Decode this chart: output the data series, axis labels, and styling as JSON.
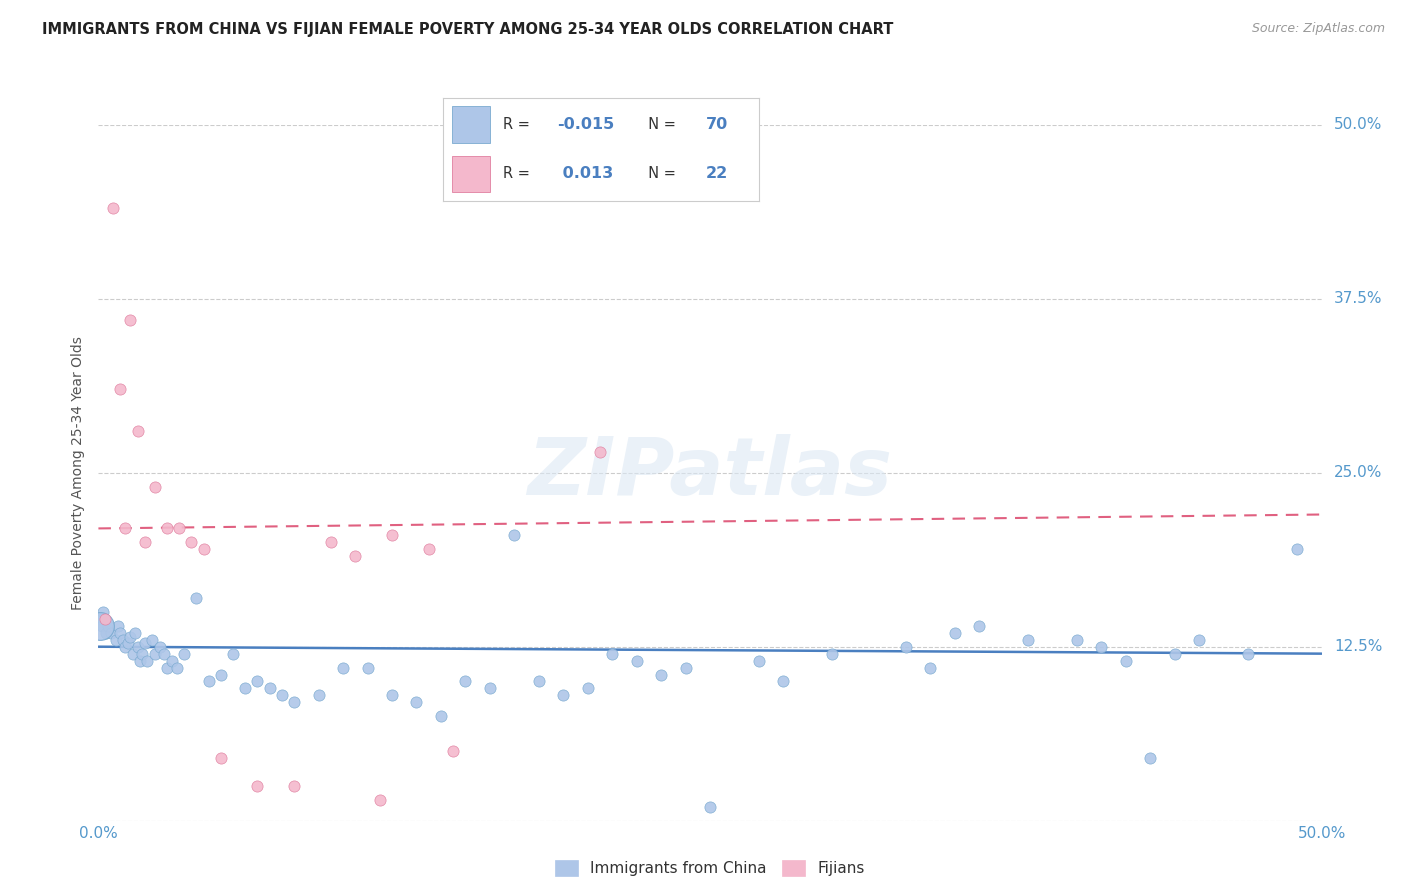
{
  "title": "IMMIGRANTS FROM CHINA VS FIJIAN FEMALE POVERTY AMONG 25-34 YEAR OLDS CORRELATION CHART",
  "source": "Source: ZipAtlas.com",
  "ylabel": "Female Poverty Among 25-34 Year Olds",
  "ytick_values": [
    0,
    12.5,
    25.0,
    37.5,
    50.0
  ],
  "xlim": [
    0,
    50
  ],
  "ylim": [
    0,
    50
  ],
  "blue_color": "#aec6e8",
  "pink_color": "#f4b8cc",
  "blue_edge_color": "#7aaad0",
  "pink_edge_color": "#e080a0",
  "blue_line_color": "#4a7fc0",
  "pink_line_color": "#e06080",
  "grid_color": "#cccccc",
  "title_color": "#222222",
  "source_color": "#999999",
  "tick_color": "#5599cc",
  "watermark": "ZIPatlas",
  "china_x": [
    0.1,
    0.15,
    0.2,
    0.3,
    0.4,
    0.5,
    0.7,
    0.8,
    0.9,
    1.0,
    1.1,
    1.2,
    1.3,
    1.4,
    1.5,
    1.6,
    1.7,
    1.8,
    1.9,
    2.0,
    2.2,
    2.3,
    2.5,
    2.7,
    2.8,
    3.0,
    3.2,
    3.5,
    4.0,
    4.5,
    5.0,
    5.5,
    6.0,
    6.5,
    7.0,
    7.5,
    8.0,
    9.0,
    10.0,
    11.0,
    12.0,
    13.0,
    14.0,
    15.0,
    16.0,
    17.0,
    18.0,
    19.0,
    20.0,
    21.0,
    22.0,
    23.0,
    24.0,
    25.0,
    27.0,
    28.0,
    30.0,
    33.0,
    34.0,
    35.0,
    36.0,
    38.0,
    40.0,
    41.0,
    42.0,
    43.0,
    44.0,
    45.0,
    47.0,
    49.0
  ],
  "china_y": [
    14.5,
    14.0,
    15.0,
    13.5,
    14.0,
    13.5,
    13.0,
    14.0,
    13.5,
    13.0,
    12.5,
    12.8,
    13.2,
    12.0,
    13.5,
    12.5,
    11.5,
    12.0,
    12.8,
    11.5,
    13.0,
    12.0,
    12.5,
    12.0,
    11.0,
    11.5,
    11.0,
    12.0,
    16.0,
    10.0,
    10.5,
    12.0,
    9.5,
    10.0,
    9.5,
    9.0,
    8.5,
    9.0,
    11.0,
    11.0,
    9.0,
    8.5,
    7.5,
    10.0,
    9.5,
    20.5,
    10.0,
    9.0,
    9.5,
    12.0,
    11.5,
    10.5,
    11.0,
    1.0,
    11.5,
    10.0,
    12.0,
    12.5,
    11.0,
    13.5,
    14.0,
    13.0,
    13.0,
    12.5,
    11.5,
    4.5,
    12.0,
    13.0,
    12.0,
    19.5
  ],
  "china_large_x": [
    0.05
  ],
  "china_large_y": [
    14.0
  ],
  "china_large_size": 400,
  "fijian_x": [
    0.25,
    0.6,
    0.9,
    1.1,
    1.3,
    1.6,
    1.9,
    2.3,
    2.8,
    3.3,
    3.8,
    4.3,
    5.0,
    6.5,
    8.0,
    9.5,
    10.5,
    11.5,
    12.0,
    13.5,
    14.5,
    20.5
  ],
  "fijian_y": [
    14.5,
    44.0,
    31.0,
    21.0,
    36.0,
    28.0,
    20.0,
    24.0,
    21.0,
    21.0,
    20.0,
    19.5,
    4.5,
    2.5,
    2.5,
    20.0,
    19.0,
    1.5,
    20.5,
    19.5,
    5.0,
    26.5
  ],
  "dot_size": 65,
  "blue_intercept": 12.5,
  "blue_slope": -0.01,
  "pink_intercept": 21.0,
  "pink_slope": 0.02
}
